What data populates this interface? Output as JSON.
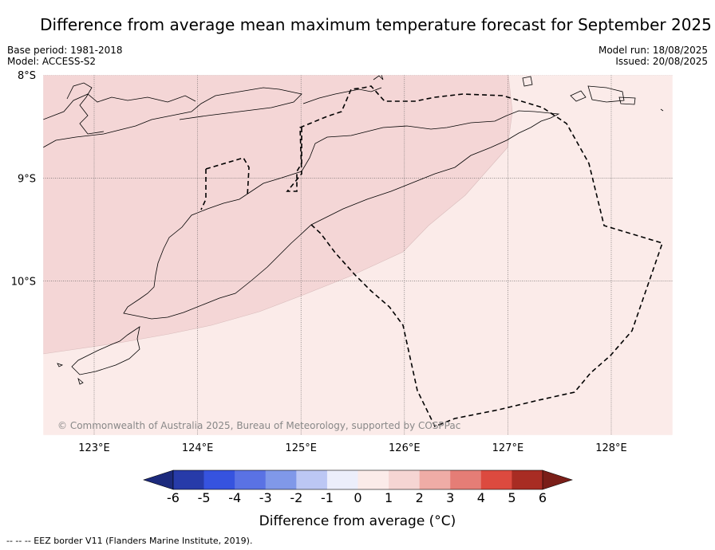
{
  "title": "Difference from average mean maximum temperature forecast for September 2025",
  "base_period": "Base period: 1981-2018",
  "model": "Model: ACCESS-S2",
  "model_run": "Model run: 18/08/2025",
  "issued": "Issued: 20/08/2025",
  "copyright": "© Commonwealth of Australia 2025, Bureau of Meteorology, supported by COSPPac",
  "footer": "-- -- -- EEZ border V11 (Flanders Marine Institute, 2019).",
  "map": {
    "lat_labels": [
      "8°S",
      "9°S",
      "10°S"
    ],
    "lon_labels": [
      "123°E",
      "124°E",
      "125°E",
      "126°E",
      "127°E",
      "128°E"
    ],
    "lat_range": [
      -11.5,
      -8.0
    ],
    "lon_range": [
      122.5,
      128.6
    ],
    "regions": [
      {
        "category": "1 to 2",
        "color": "#f4d6d6"
      },
      {
        "category": "0 to 1",
        "color": "#fbebe9"
      }
    ]
  },
  "colorbar": {
    "label": "Difference from average (°C)",
    "ticks": [
      "-6",
      "-5",
      "-4",
      "-3",
      "-2",
      "-1",
      "0",
      "1",
      "2",
      "3",
      "4",
      "5",
      "6"
    ],
    "colors": [
      "#273ba9",
      "#3653df",
      "#5a72e4",
      "#8098e9",
      "#bcc7f4",
      "#eceefb",
      "#fbebe9",
      "#f5d5d3",
      "#efaca6",
      "#e57d76",
      "#dc4a3f",
      "#a82c23"
    ],
    "under_color": "#1c2a7c",
    "over_color": "#7a1e18"
  }
}
